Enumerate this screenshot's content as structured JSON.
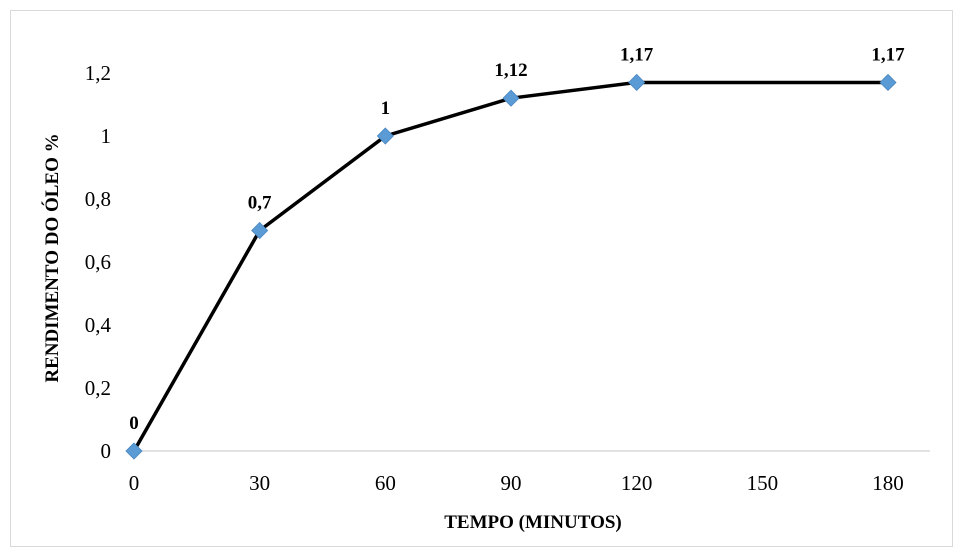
{
  "chart_data": {
    "type": "line",
    "xlabel": "TEMPO (MINUTOS)",
    "ylabel": "RENDIMENTO DO ÓLEO %",
    "categories": [
      "0",
      "30",
      "60",
      "90",
      "120",
      "150",
      "180"
    ],
    "ylim": [
      0,
      1.2
    ],
    "y_ticks": [
      "0",
      "0,2",
      "0,4",
      "0,6",
      "0,8",
      "1",
      "1,2"
    ],
    "grid": false,
    "series": [
      {
        "x": [
          "0",
          "30",
          "60",
          "90",
          "120",
          "180"
        ],
        "values": [
          0,
          0.7,
          1,
          1.12,
          1.17,
          1.17
        ],
        "data_labels": [
          "0",
          "0,7",
          "1",
          "1,12",
          "1,17",
          "1,17"
        ],
        "line_color": "#000000",
        "marker_color": "#5b9bd5",
        "marker": "diamond"
      }
    ]
  }
}
